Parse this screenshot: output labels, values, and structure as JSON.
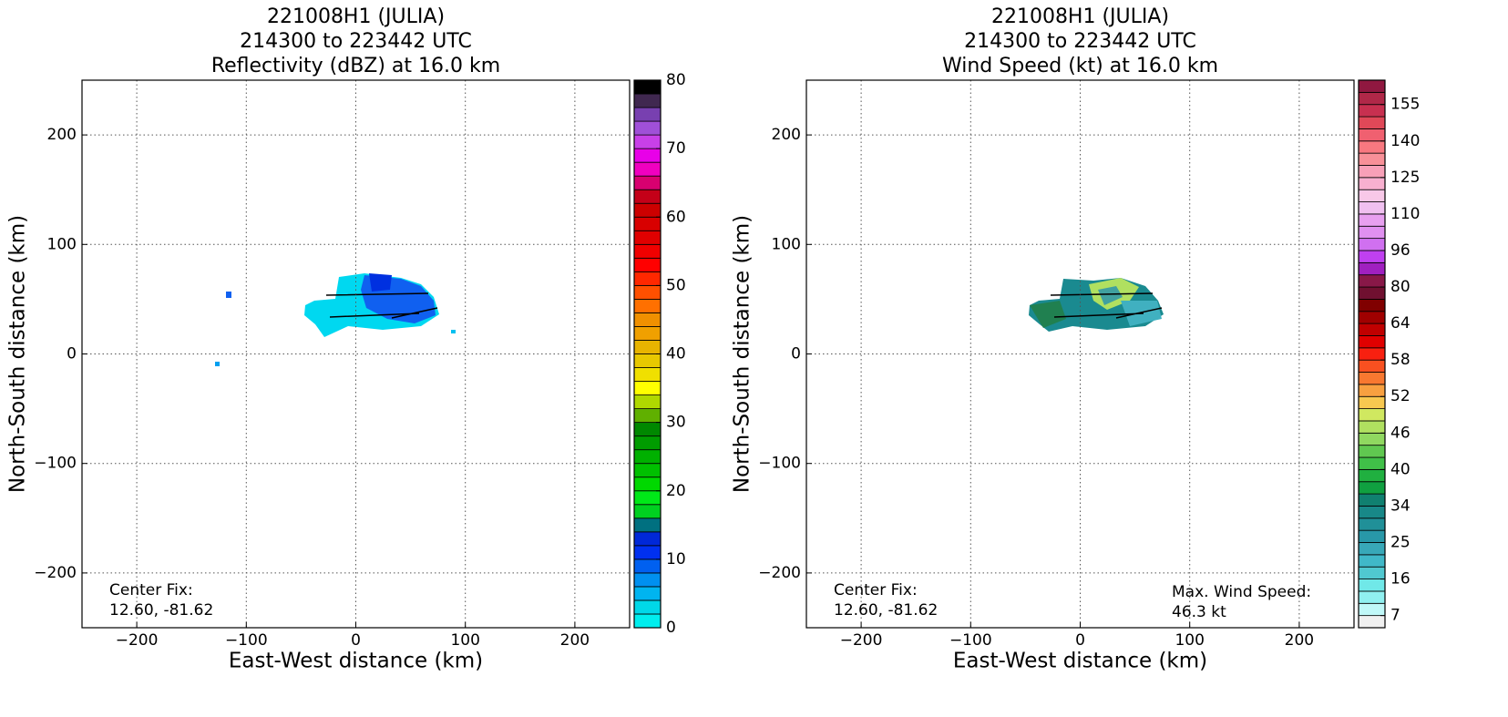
{
  "chart_data": [
    {
      "type": "radar-map",
      "title": [
        "221008H1 (JULIA)",
        "214300 to 223442 UTC",
        "Reflectivity (dBZ) at 16.0 km"
      ],
      "xlabel": "East-West distance (km)",
      "ylabel": "North-South distance (km)",
      "xlim": [
        -250,
        250
      ],
      "ylim": [
        -250,
        250
      ],
      "xticks": [
        {
          "value": -200,
          "label": "−200"
        },
        {
          "value": -100,
          "label": "−100"
        },
        0,
        100,
        200
      ],
      "yticks": [
        {
          "value": -200,
          "label": "−200"
        },
        {
          "value": -100,
          "label": "−100"
        },
        0,
        100,
        200
      ],
      "grid": true,
      "annotations": [
        [
          "Center Fix:",
          "12.60, -81.62"
        ]
      ],
      "colorbar": {
        "clim": [
          0,
          80
        ],
        "ticks": [
          0,
          10,
          20,
          30,
          40,
          50,
          60,
          70,
          80
        ],
        "colors": [
          "#00eeee",
          "#00d8e8",
          "#00b4f0",
          "#0090f0",
          "#0060f0",
          "#0030f0",
          "#0028d8",
          "#007080",
          "#00d020",
          "#00e818",
          "#00d800",
          "#00c000",
          "#00b000",
          "#009c00",
          "#008800",
          "#60b000",
          "#b0d800",
          "#ffff00",
          "#f0e000",
          "#e8c800",
          "#e8b400",
          "#f0a000",
          "#f09000",
          "#ff7000",
          "#ff5000",
          "#ff2800",
          "#ff0000",
          "#f00000",
          "#e00000",
          "#d80000",
          "#cc0000",
          "#c40018",
          "#d80070",
          "#f000c0",
          "#e800e8",
          "#c840e8",
          "#a050d8",
          "#7840b0",
          "#402850",
          "#000000"
        ]
      }
    },
    {
      "type": "radar-map",
      "title": [
        "221008H1 (JULIA)",
        "214300 to 223442 UTC",
        "Wind Speed (kt) at 16.0 km"
      ],
      "xlabel": "East-West distance (km)",
      "ylabel": "North-South distance (km)",
      "xlim": [
        -250,
        250
      ],
      "ylim": [
        -250,
        250
      ],
      "xticks": [
        {
          "value": -200,
          "label": "−200"
        },
        {
          "value": -100,
          "label": "−100"
        },
        0,
        100,
        200
      ],
      "yticks": [
        {
          "value": -200,
          "label": "−200"
        },
        {
          "value": -100,
          "label": "−100"
        },
        0,
        100,
        200
      ],
      "grid": true,
      "annotations": [
        [
          "Center Fix:",
          "12.60, -81.62"
        ],
        [
          "Max. Wind Speed:",
          "46.3 kt"
        ]
      ],
      "colorbar": {
        "ticks": [
          7,
          16,
          25,
          34,
          40,
          46,
          52,
          58,
          64,
          80,
          96,
          110,
          125,
          140,
          155
        ],
        "colors": [
          "#f0f0f0",
          "#c0f8f8",
          "#90f0f0",
          "#70e8e8",
          "#50c8d0",
          "#40b8c8",
          "#38a8b8",
          "#2898a8",
          "#209098",
          "#188888",
          "#108070",
          "#10a040",
          "#20b040",
          "#40c048",
          "#60c850",
          "#90d860",
          "#b0e060",
          "#d0e860",
          "#f8c850",
          "#f8a040",
          "#f87830",
          "#f85020",
          "#f82010",
          "#e00000",
          "#c00000",
          "#a00000",
          "#800000",
          "#701030",
          "#881848",
          "#a020c0",
          "#c040f0",
          "#d070f0",
          "#e090f0",
          "#e8a0f0",
          "#f0c0f0",
          "#f8c8e8",
          "#f8b0d0",
          "#f8a0b8",
          "#f89098",
          "#f87880",
          "#f06070",
          "#e04858",
          "#c83050",
          "#b02848",
          "#901840"
        ]
      }
    }
  ]
}
